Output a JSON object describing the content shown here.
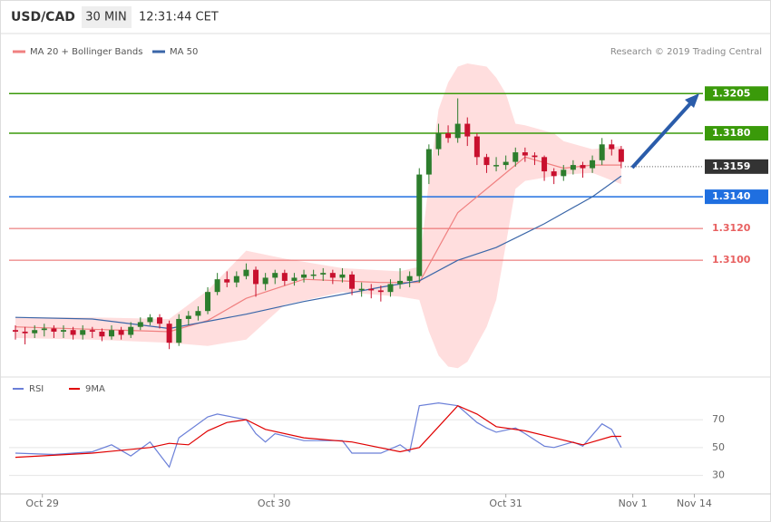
{
  "header": {
    "symbol": "USD/CAD",
    "interval": "30 MIN",
    "time": "12:31:44 CET"
  },
  "legend": {
    "ma20": "MA 20 + Bollinger Bands",
    "ma50": "MA 50",
    "credit": "Research © 2019 Trading Central"
  },
  "chart_data": [
    {
      "type": "candlestick",
      "ylim": [
        1.3027,
        1.3224
      ],
      "xlim": [
        -0.66,
        71.5
      ],
      "candles": [
        [
          1.3056,
          1.3059,
          1.305,
          1.3055
        ],
        [
          1.3055,
          1.3058,
          1.3047,
          1.3054
        ],
        [
          1.3054,
          1.3059,
          1.3051,
          1.3056
        ],
        [
          1.3056,
          1.306,
          1.3052,
          1.3057
        ],
        [
          1.3057,
          1.3059,
          1.3051,
          1.3055
        ],
        [
          1.3055,
          1.3059,
          1.3051,
          1.3056
        ],
        [
          1.3056,
          1.3058,
          1.305,
          1.3053
        ],
        [
          1.3053,
          1.3059,
          1.305,
          1.3056
        ],
        [
          1.3056,
          1.3058,
          1.3051,
          1.3055
        ],
        [
          1.3055,
          1.3057,
          1.3049,
          1.3052
        ],
        [
          1.3052,
          1.3059,
          1.305,
          1.3056
        ],
        [
          1.3056,
          1.3058,
          1.305,
          1.3053
        ],
        [
          1.3053,
          1.3061,
          1.3051,
          1.3058
        ],
        [
          1.3058,
          1.3064,
          1.3056,
          1.3061
        ],
        [
          1.3061,
          1.3066,
          1.3059,
          1.3064
        ],
        [
          1.3064,
          1.3066,
          1.3057,
          1.306
        ],
        [
          1.306,
          1.3062,
          1.3044,
          1.3048
        ],
        [
          1.3048,
          1.3066,
          1.3046,
          1.3063
        ],
        [
          1.3063,
          1.3068,
          1.3059,
          1.3065
        ],
        [
          1.3065,
          1.3071,
          1.3062,
          1.3068
        ],
        [
          1.3068,
          1.3083,
          1.3066,
          1.308
        ],
        [
          1.308,
          1.3092,
          1.3078,
          1.3088
        ],
        [
          1.3088,
          1.3093,
          1.3083,
          1.3086
        ],
        [
          1.3086,
          1.3093,
          1.3083,
          1.309
        ],
        [
          1.309,
          1.3098,
          1.3088,
          1.3094
        ],
        [
          1.3094,
          1.3096,
          1.3077,
          1.3085
        ],
        [
          1.3085,
          1.3092,
          1.3081,
          1.3089
        ],
        [
          1.3089,
          1.3094,
          1.3085,
          1.3092
        ],
        [
          1.3092,
          1.3094,
          1.3084,
          1.3087
        ],
        [
          1.3087,
          1.3092,
          1.3084,
          1.3089
        ],
        [
          1.3089,
          1.3094,
          1.3086,
          1.3091
        ],
        [
          1.3091,
          1.3094,
          1.3088,
          1.3091
        ],
        [
          1.3091,
          1.3095,
          1.3087,
          1.3092
        ],
        [
          1.3092,
          1.3094,
          1.3085,
          1.3089
        ],
        [
          1.3089,
          1.3095,
          1.3086,
          1.3091
        ],
        [
          1.3091,
          1.3093,
          1.3078,
          1.3082
        ],
        [
          1.3082,
          1.3086,
          1.3077,
          1.3082
        ],
        [
          1.3082,
          1.3085,
          1.3076,
          1.3081
        ],
        [
          1.3081,
          1.3084,
          1.3074,
          1.308
        ],
        [
          1.308,
          1.3088,
          1.3077,
          1.3085
        ],
        [
          1.3085,
          1.3095,
          1.3082,
          1.3087
        ],
        [
          1.3087,
          1.3093,
          1.3083,
          1.309
        ],
        [
          1.309,
          1.3158,
          1.3086,
          1.3154
        ],
        [
          1.3154,
          1.3173,
          1.3148,
          1.317
        ],
        [
          1.317,
          1.3186,
          1.3166,
          1.318
        ],
        [
          1.318,
          1.3185,
          1.3174,
          1.3177
        ],
        [
          1.3177,
          1.3202,
          1.3174,
          1.3186
        ],
        [
          1.3186,
          1.319,
          1.3172,
          1.3178
        ],
        [
          1.3178,
          1.318,
          1.316,
          1.3165
        ],
        [
          1.3165,
          1.3167,
          1.3155,
          1.316
        ],
        [
          1.316,
          1.3165,
          1.3156,
          1.316
        ],
        [
          1.316,
          1.3166,
          1.3157,
          1.3162
        ],
        [
          1.3162,
          1.3171,
          1.3159,
          1.3168
        ],
        [
          1.3168,
          1.3171,
          1.3162,
          1.3166
        ],
        [
          1.3166,
          1.3168,
          1.316,
          1.3165
        ],
        [
          1.3165,
          1.3166,
          1.315,
          1.3156
        ],
        [
          1.3156,
          1.3158,
          1.3148,
          1.3153
        ],
        [
          1.3153,
          1.316,
          1.315,
          1.3157
        ],
        [
          1.3157,
          1.3163,
          1.3154,
          1.316
        ],
        [
          1.316,
          1.3162,
          1.3152,
          1.3158
        ],
        [
          1.3158,
          1.3166,
          1.3155,
          1.3163
        ],
        [
          1.3163,
          1.3177,
          1.316,
          1.3173
        ],
        [
          1.3173,
          1.3176,
          1.3166,
          1.317
        ],
        [
          1.317,
          1.3172,
          1.3158,
          1.3162
        ]
      ],
      "up_color": "#2d7d2d",
      "down_color": "#c8102e",
      "bands": {
        "color": "#ffdede",
        "x": [
          0,
          8,
          16,
          20,
          24,
          28,
          34,
          40,
          42,
          43,
          44,
          45,
          46,
          47,
          49,
          50,
          51,
          52,
          53,
          56,
          57,
          60,
          63
        ],
        "upper": [
          1.3064,
          1.3064,
          1.3063,
          1.3081,
          1.3106,
          1.3101,
          1.3095,
          1.3093,
          1.3096,
          1.315,
          1.3195,
          1.3212,
          1.3222,
          1.3224,
          1.3222,
          1.3215,
          1.3205,
          1.3186,
          1.3185,
          1.318,
          1.3175,
          1.317,
          1.3172
        ],
        "lower": [
          1.3051,
          1.305,
          1.3048,
          1.3046,
          1.305,
          1.3072,
          1.308,
          1.3077,
          1.3075,
          1.3055,
          1.304,
          1.3033,
          1.3032,
          1.3036,
          1.3058,
          1.3075,
          1.311,
          1.3145,
          1.315,
          1.3153,
          1.3154,
          1.3155,
          1.3148
        ]
      },
      "series": [
        {
          "name": "MA 20",
          "color": "#f08080",
          "x": [
            0,
            16,
            20,
            24,
            30,
            38,
            42,
            46,
            50,
            53,
            57,
            60,
            63
          ],
          "values": [
            1.3058,
            1.3055,
            1.3062,
            1.3076,
            1.3088,
            1.3086,
            1.3086,
            1.313,
            1.315,
            1.3165,
            1.3158,
            1.316,
            1.316
          ]
        },
        {
          "name": "MA 50",
          "color": "#3a66a8",
          "x": [
            0,
            8,
            16,
            24,
            30,
            38,
            42,
            46,
            50,
            55,
            60,
            63
          ],
          "values": [
            1.3064,
            1.3063,
            1.3057,
            1.3066,
            1.3074,
            1.3083,
            1.3087,
            1.31,
            1.3108,
            1.3123,
            1.314,
            1.3153
          ]
        }
      ],
      "levels": [
        {
          "value": 1.3205,
          "label": "1.3205",
          "color": "#3a9a0a",
          "style": "box"
        },
        {
          "value": 1.318,
          "label": "1.3180",
          "color": "#3a9a0a",
          "style": "box"
        },
        {
          "value": 1.3159,
          "label": "1.3159",
          "color": "#333333",
          "style": "current"
        },
        {
          "value": 1.314,
          "label": "1.3140",
          "color": "#1f6fe0",
          "style": "box"
        },
        {
          "value": 1.312,
          "label": "1.3120",
          "color": "#e86060",
          "style": "text"
        },
        {
          "value": 1.31,
          "label": "1.3100",
          "color": "#e86060",
          "style": "text"
        }
      ]
    },
    {
      "type": "line",
      "ylim": [
        20,
        98
      ],
      "xlim": [
        -0.66,
        71.5
      ],
      "yticks": [
        30,
        50,
        70
      ],
      "grid": true,
      "xticks": [
        {
          "value": 2.8,
          "label": "Oct 29"
        },
        {
          "value": 26.9,
          "label": "Oct 30"
        },
        {
          "value": 51,
          "label": "Oct 31"
        },
        {
          "value": 64.2,
          "label": "Nov 1"
        },
        {
          "value": 70.6,
          "label": "Nov 14"
        }
      ],
      "series": [
        {
          "name": "RSI",
          "color": "#6a7fd8",
          "x": [
            0,
            4,
            8,
            10,
            12,
            14,
            16,
            17,
            20,
            21,
            24,
            25,
            26,
            27,
            30,
            34,
            35,
            38,
            40,
            41,
            42,
            44,
            46,
            48,
            49,
            50,
            52,
            53,
            55,
            56,
            58,
            59,
            61,
            62,
            63
          ],
          "values": [
            46,
            45,
            47,
            52,
            44,
            54,
            36,
            57,
            72,
            74,
            70,
            60,
            54,
            60,
            55,
            55,
            46,
            46,
            52,
            47,
            80,
            82,
            80,
            68,
            64,
            61,
            64,
            60,
            51,
            50,
            54,
            51,
            67,
            63,
            50
          ]
        },
        {
          "name": "9MA",
          "color": "#e00000",
          "x": [
            0,
            8,
            14,
            16,
            18,
            20,
            22,
            24,
            26,
            30,
            35,
            40,
            42,
            44,
            46,
            48,
            50,
            53,
            56,
            59,
            62,
            63
          ],
          "values": [
            43,
            46,
            50,
            53,
            52,
            62,
            68,
            70,
            63,
            57,
            54,
            47,
            50,
            65,
            80,
            74,
            65,
            62,
            57,
            52,
            58,
            58
          ]
        }
      ]
    }
  ]
}
